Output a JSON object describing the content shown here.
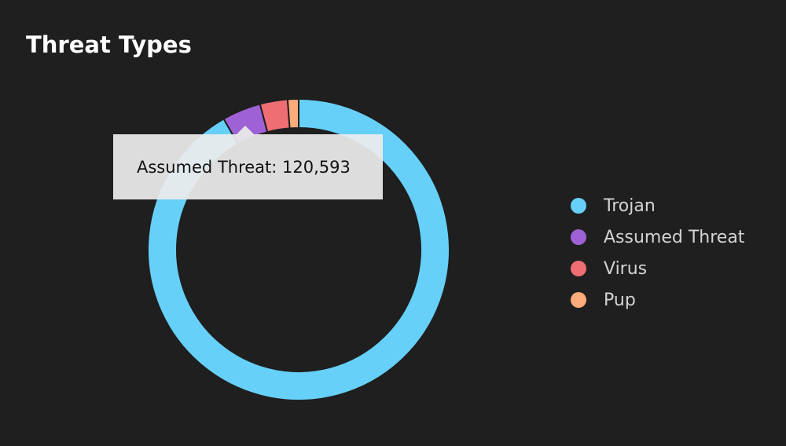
{
  "title": "Threat Types",
  "chart_data": {
    "type": "pie",
    "variant": "donut",
    "title": "Threat Types",
    "categories": [
      "Trojan",
      "Assumed Threat",
      "Virus",
      "Pup"
    ],
    "values": [
      2665000,
      120593,
      86000,
      34000
    ],
    "colors": [
      "#66d0f8",
      "#9f62d6",
      "#ef6e74",
      "#fcab7a"
    ],
    "legend_position": "right",
    "hovered_category": "Assumed Threat"
  },
  "tooltip": {
    "text": "Assumed Threat: 120,593"
  }
}
